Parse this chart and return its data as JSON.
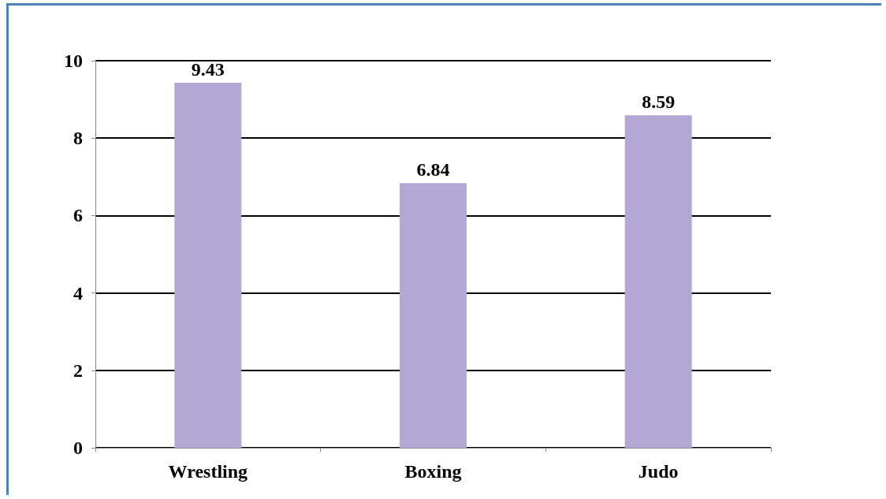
{
  "chart_data": {
    "type": "bar",
    "categories": [
      "Wrestling",
      "Boxing",
      "Judo"
    ],
    "values": [
      9.43,
      6.84,
      8.59
    ],
    "color": "#b4a7d6",
    "ylim": [
      0,
      10
    ],
    "yticks": [
      0,
      2,
      4,
      6,
      8,
      10
    ],
    "grid": "y",
    "data_labels": true
  }
}
